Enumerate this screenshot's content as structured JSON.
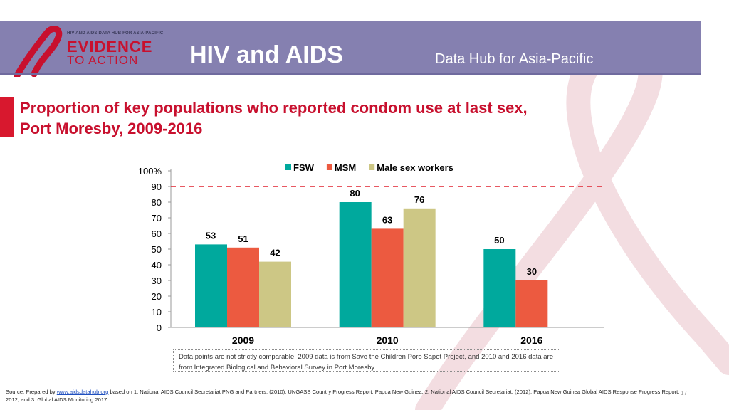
{
  "header": {
    "logo_top": "HIV AND AIDS DATA HUB FOR ASIA-PACIFIC",
    "logo_line1": "EVIDENCE",
    "logo_line2": "TO ACTION",
    "title": "HIV and AIDS",
    "subtitle": "Data Hub for Asia-Pacific"
  },
  "slide": {
    "title_line1": "Proportion of key populations who reported condom use at last sex,",
    "title_line2": "Port Moresby, 2009-2016"
  },
  "colors": {
    "header_bg": "#8580b0",
    "accent_red": "#c8102e",
    "fsw": "#00a99d",
    "msm": "#ec5a40",
    "msw": "#cdc785",
    "target_line": "#e0202e"
  },
  "chart_data": {
    "type": "bar",
    "categories": [
      "2009",
      "2010",
      "2016"
    ],
    "series": [
      {
        "name": "FSW",
        "values": [
          53,
          80,
          50
        ]
      },
      {
        "name": "MSM",
        "values": [
          51,
          63,
          30
        ]
      },
      {
        "name": "Male sex workers",
        "values": [
          42,
          76,
          null
        ]
      }
    ],
    "yticks": [
      "0",
      "10",
      "20",
      "30",
      "40",
      "50",
      "60",
      "70",
      "80",
      "90",
      "100%"
    ],
    "ylim": [
      0,
      100
    ],
    "reference_line": 90,
    "legend": "top",
    "grid": false
  },
  "footer": {
    "note": "Data points are not strictly comparable. 2009 data is from Save the Children Poro Sapot Project, and 2010 and 2016 data are from Integrated Biological and Behavioral Survey in Port Moresby",
    "source_prefix": "Source: Prepared by ",
    "source_link": "www.aidsdatahub.org",
    "source_rest": " based on 1. National AIDS Council Secretariat PNG and Partners. (2010). UNGASS Country Progress Report: Papua New Guinea; 2. National AIDS Council Secretariat. (2012). Papua New Guinea Global AIDS Response Progress Report, 2012, and 3. Global AIDS Monitoring 2017",
    "page_number": "17"
  }
}
